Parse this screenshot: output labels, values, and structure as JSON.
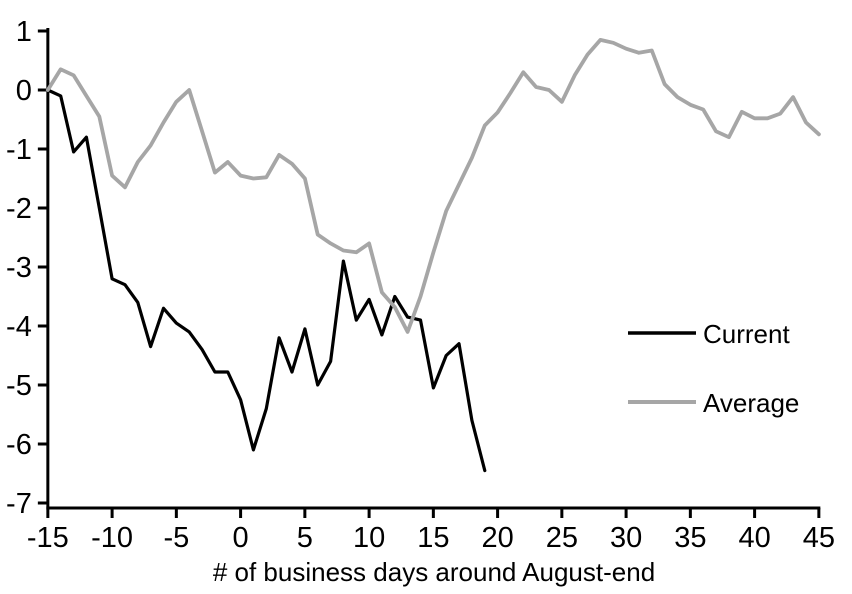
{
  "chart_data": {
    "type": "line",
    "title": "",
    "xlabel": "# of business days around August-end",
    "ylabel": "",
    "xlim": [
      -15,
      45
    ],
    "ylim": [
      -7,
      1
    ],
    "grid": false,
    "legend_position": "middle-right",
    "x_ticks": [
      -15,
      -10,
      -5,
      0,
      5,
      10,
      15,
      20,
      25,
      30,
      35,
      40,
      45
    ],
    "y_ticks": [
      1,
      0,
      -1,
      -2,
      -3,
      -4,
      -5,
      -6,
      -7
    ],
    "series": [
      {
        "name": "Current",
        "color": "#000000",
        "stroke_width": 3.2,
        "x_start": -15,
        "x_step": 1,
        "values": [
          0.0,
          -0.1,
          -1.05,
          -0.8,
          -2.0,
          -3.2,
          -3.3,
          -3.6,
          -4.35,
          -3.7,
          -3.95,
          -4.1,
          -4.4,
          -4.78,
          -4.78,
          -5.25,
          -6.1,
          -5.4,
          -4.2,
          -4.78,
          -4.05,
          -5.0,
          -4.6,
          -2.9,
          -3.9,
          -3.55,
          -4.15,
          -3.5,
          -3.85,
          -3.9,
          -5.05,
          -4.5,
          -4.3,
          -5.6,
          -6.45
        ]
      },
      {
        "name": "Average",
        "color": "#a6a6a6",
        "stroke_width": 3.8,
        "x_start": -15,
        "x_step": 1,
        "values": [
          0.0,
          0.35,
          0.25,
          -0.1,
          -0.45,
          -1.45,
          -1.65,
          -1.22,
          -0.94,
          -0.55,
          -0.2,
          0.0,
          -0.7,
          -1.4,
          -1.22,
          -1.45,
          -1.5,
          -1.48,
          -1.1,
          -1.25,
          -1.5,
          -2.45,
          -2.6,
          -2.72,
          -2.75,
          -2.6,
          -3.43,
          -3.68,
          -4.1,
          -3.5,
          -2.75,
          -2.05,
          -1.6,
          -1.15,
          -0.6,
          -0.38,
          -0.05,
          0.3,
          0.05,
          0.0,
          -0.2,
          0.25,
          0.6,
          0.85,
          0.8,
          0.7,
          0.63,
          0.67,
          0.1,
          -0.12,
          -0.25,
          -0.33,
          -0.7,
          -0.8,
          -0.37,
          -0.48,
          -0.48,
          -0.4,
          -0.12,
          -0.55,
          -0.75
        ]
      }
    ]
  },
  "legend": {
    "current_label": "Current",
    "average_label": "Average"
  },
  "colors": {
    "axis": "#000000",
    "background": "#ffffff",
    "current": "#000000",
    "average": "#a6a6a6"
  }
}
